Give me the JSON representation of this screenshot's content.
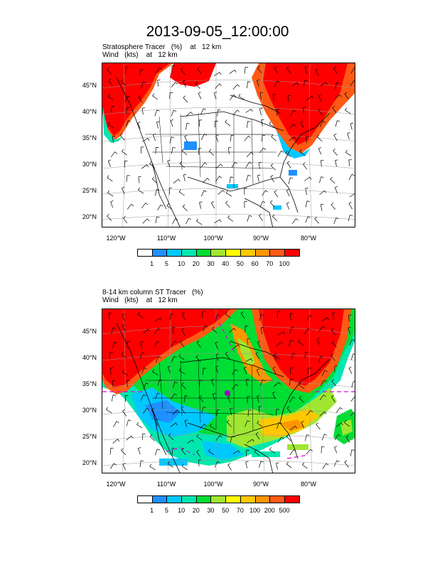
{
  "title": "2013-09-05_12:00:00",
  "panels": [
    {
      "label_line1": "Stratosphere Tracer   (%)    at   12 km",
      "label_line2": "Wind   (kts)    at   12 km",
      "lat_labels": [
        "45°N",
        "40°N",
        "35°N",
        "30°N",
        "25°N",
        "20°N"
      ],
      "lon_labels": [
        "120°W",
        "110°W",
        "100°W",
        "90°W",
        "80°W"
      ],
      "colorbar_levels": [
        "1",
        "5",
        "10",
        "20",
        "30",
        "40",
        "50",
        "60",
        "70",
        "100"
      ],
      "colorbar_colors": [
        "#ffffff",
        "#1e90ff",
        "#00c8ff",
        "#00e8b0",
        "#00dd33",
        "#a0e632",
        "#ffff00",
        "#ffc800",
        "#ff9600",
        "#ff5a14",
        "#ff0000"
      ]
    },
    {
      "label_line1": "8-14 km column ST Tracer   (%)",
      "label_line2": "Wind   (kts)    at   12 km",
      "lat_labels": [
        "45°N",
        "40°N",
        "35°N",
        "30°N",
        "25°N",
        "20°N"
      ],
      "lon_labels": [
        "120°W",
        "110°W",
        "100°W",
        "90°W",
        "80°W"
      ],
      "colorbar_levels": [
        "1",
        "5",
        "10",
        "20",
        "30",
        "50",
        "70",
        "100",
        "200",
        "500"
      ],
      "colorbar_colors": [
        "#ffffff",
        "#1e90ff",
        "#00c8ff",
        "#00e8b0",
        "#00dd33",
        "#a0e632",
        "#ffff00",
        "#ffc800",
        "#ff9600",
        "#ff5a14",
        "#ff0000"
      ]
    }
  ]
}
